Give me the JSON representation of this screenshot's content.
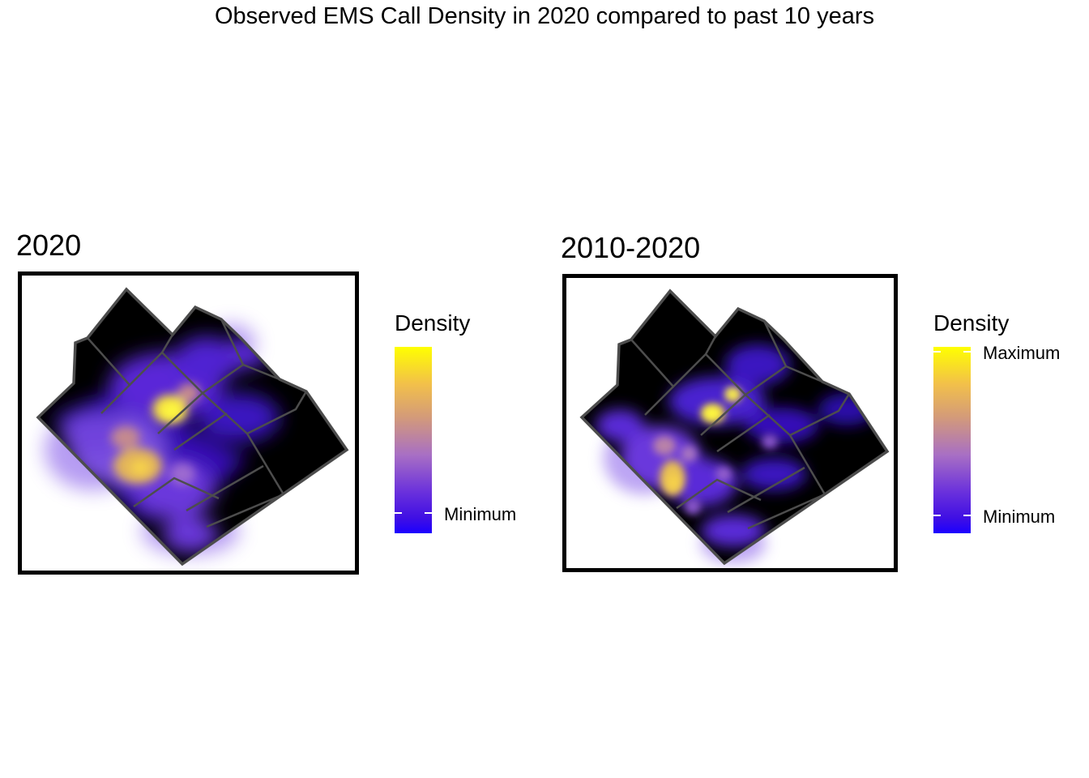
{
  "title": "Observed EMS Call Density in 2020 compared to past 10 years",
  "panels": [
    {
      "title": "2020",
      "legend": {
        "title": "Density",
        "labels": [
          "Minimum"
        ]
      },
      "hotspot_levels": {
        "peak": 1.0,
        "secondary": 0.85,
        "tertiary": 0.6
      }
    },
    {
      "title": "2010-2020",
      "legend": {
        "title": "Density",
        "labels": [
          "Maximum",
          "Minimum"
        ]
      },
      "hotspot_levels": {
        "peak": 1.0,
        "secondary": 0.95,
        "tertiary": 0.7
      }
    }
  ],
  "colors": {
    "background": "#000000",
    "boundary": "#4d4d4d",
    "low": "#1c00ff",
    "mid": "#a86fc4",
    "high": "#ffff00"
  }
}
